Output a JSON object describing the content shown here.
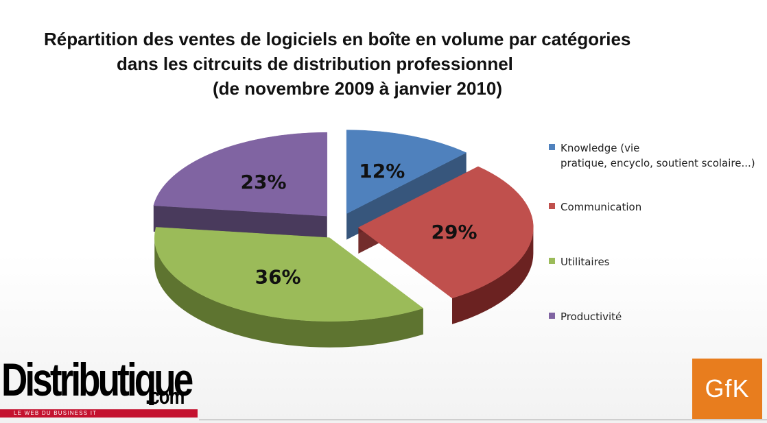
{
  "title": {
    "line1": "Répartition des ventes de logiciels en boîte en volume par catégories",
    "line2": "dans les citrcuits de distribution professionnel",
    "line3": "(de novembre 2009 à janvier 2010)"
  },
  "chart_data": {
    "type": "pie",
    "exploded": true,
    "three_d": true,
    "title": "Répartition des ventes de logiciels en boîte en volume par catégories dans les citrcuits de distribution professionnel (de novembre 2009 à janvier 2010)",
    "legend_position": "right",
    "slices": [
      {
        "label": "Knowledge (vie pratique, encyclo, soutient scolaire...)",
        "legend_line1": "Knowledge (vie",
        "legend_line2": "pratique, encyclo, soutient scolaire...)",
        "value": 12,
        "display": "12%",
        "color": "#4f81bd",
        "side_color": "#2c4d75"
      },
      {
        "label": "Communication",
        "legend_line1": "Communication",
        "legend_line2": "",
        "value": 29,
        "display": "29%",
        "color": "#c0504d",
        "side_color": "#6b2221"
      },
      {
        "label": "Utilitaires",
        "legend_line1": "Utilitaires",
        "legend_line2": "",
        "value": 36,
        "display": "36%",
        "color": "#9bbb59",
        "side_color": "#5e7430"
      },
      {
        "label": "Productivité",
        "legend_line1": "Productivité",
        "legend_line2": "",
        "value": 23,
        "display": "23%",
        "color": "#8064a2",
        "side_color": "#3f2f53"
      }
    ]
  },
  "logos": {
    "distributique_word": "Distributique",
    "distributique_com": ".com",
    "distributique_tagline": "LE WEB DU BUSINESS IT",
    "gfk": "GfK"
  }
}
